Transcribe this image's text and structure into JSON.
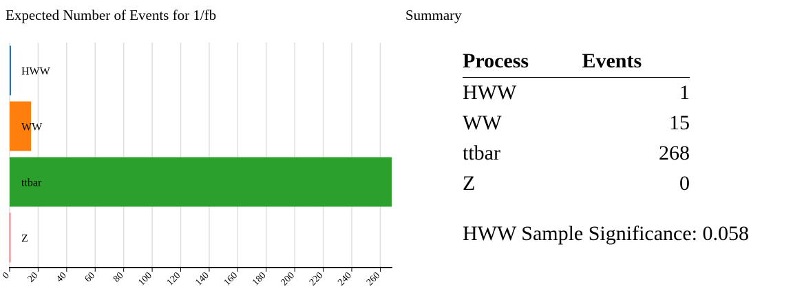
{
  "chart_heading": "Expected Number of Events for 1/fb",
  "summary_heading": "Summary",
  "chart_data": {
    "type": "bar",
    "orientation": "horizontal",
    "categories": [
      "HWW",
      "WW",
      "ttbar",
      "Z"
    ],
    "values": [
      1,
      15,
      268,
      0
    ],
    "colors": [
      "#1f77b4",
      "#ff7f0e",
      "#2ca02c",
      "#d62728"
    ],
    "xlim": [
      0,
      268
    ],
    "xticks": [
      0,
      20,
      40,
      60,
      80,
      100,
      120,
      140,
      160,
      180,
      200,
      220,
      240,
      260
    ],
    "grid": true
  },
  "summary_table": {
    "headers": [
      "Process",
      "Events"
    ],
    "rows": [
      {
        "process": "HWW",
        "events": "1"
      },
      {
        "process": "WW",
        "events": "15"
      },
      {
        "process": "ttbar",
        "events": "268"
      },
      {
        "process": "Z",
        "events": "0"
      }
    ]
  },
  "significance": "HWW Sample Significance: 0.058"
}
